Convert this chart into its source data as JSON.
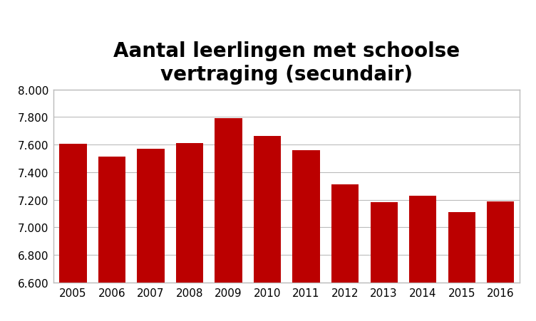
{
  "title": "Aantal leerlingen met schoolse\nvertraging (secundair)",
  "categories": [
    2005,
    2006,
    2007,
    2008,
    2009,
    2010,
    2011,
    2012,
    2013,
    2014,
    2015,
    2016
  ],
  "values": [
    7605,
    7510,
    7570,
    7610,
    7790,
    7660,
    7560,
    7310,
    7180,
    7230,
    7110,
    7185
  ],
  "bar_color": "#bb0000",
  "ylim": [
    6600,
    8000
  ],
  "yticks": [
    6600,
    6800,
    7000,
    7200,
    7400,
    7600,
    7800,
    8000
  ],
  "ytick_labels": [
    "6.600",
    "6.800",
    "7.000",
    "7.200",
    "7.400",
    "7.600",
    "7.800",
    "8.000"
  ],
  "title_fontsize": 20,
  "tick_fontsize": 11,
  "background_color": "#ffffff",
  "grid_color": "#bbbbbb",
  "border_color": "#bbbbbb"
}
